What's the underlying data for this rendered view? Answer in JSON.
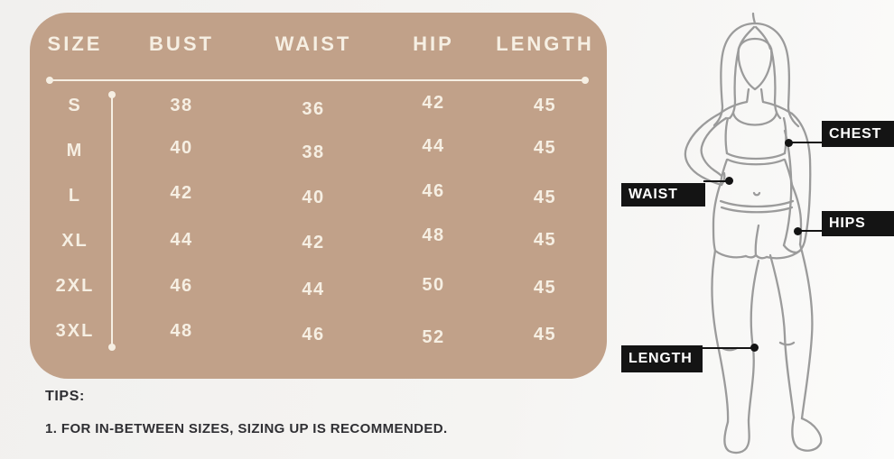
{
  "chart_data": {
    "type": "table",
    "columns": [
      "SIZE",
      "BUST",
      "WAIST",
      "HIP",
      "LENGTH"
    ],
    "rows": [
      [
        "S",
        "38",
        "36",
        "42",
        "45"
      ],
      [
        "M",
        "40",
        "38",
        "44",
        "45"
      ],
      [
        "L",
        "42",
        "40",
        "46",
        "45"
      ],
      [
        "XL",
        "44",
        "42",
        "48",
        "45"
      ],
      [
        "2XL",
        "46",
        "44",
        "50",
        "45"
      ],
      [
        "3XL",
        "48",
        "46",
        "52",
        "45"
      ]
    ]
  },
  "tips": {
    "heading": "TIPS:",
    "item_1": "1. FOR IN-BETWEEN SIZES, SIZING UP IS RECOMMENDED."
  },
  "figure": {
    "labels": {
      "chest": "CHEST",
      "waist": "WAIST",
      "hips": "HIPS",
      "length": "LENGTH"
    }
  },
  "colors": {
    "panel_bg": "#c1a189",
    "panel_text": "#f6efe3",
    "label_bg": "#141414",
    "label_text": "#ffffff",
    "tips_text": "#2f2f33",
    "figure_stroke": "#9b9b9b"
  }
}
